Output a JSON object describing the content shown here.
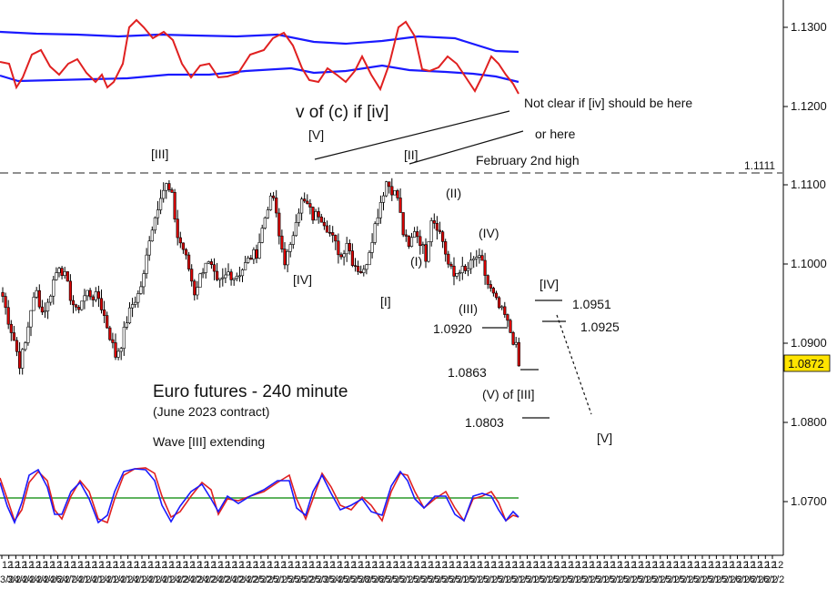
{
  "chart_data": {
    "type": "candlestick",
    "title": "Euro futures - 240 minute",
    "subtitle": "(June 2023 contract)",
    "note": "Wave [III] extending",
    "price_axis": {
      "ylim": [
        1.063,
        1.134
      ],
      "ticks": [
        "1.1300",
        "1.1200",
        "1.1100",
        "1.1000",
        "1.0900",
        "1.0800",
        "1.0700"
      ],
      "last_price": "1.0872",
      "reference_level_label": "1.1111"
    },
    "reference_level": {
      "value": 1.1111,
      "label": "February 2nd high",
      "style": "dashed"
    },
    "time_axis_labels": [
      "3/2",
      "3/2",
      "4/2",
      "4/2",
      "4/2",
      "4/2",
      "4/2",
      "4/2",
      "6/2",
      "4/2",
      "7/2",
      "4/2",
      "1/2",
      "4/2",
      "1/2",
      "4/2",
      "1/2",
      "4/2",
      "1/2",
      "4/2",
      "1/2",
      "4/2",
      "1/2",
      "4/2",
      "1/2",
      "4/2",
      "2/2",
      "4/2",
      "2/2",
      "4/2",
      "2/2",
      "4/2",
      "2/2",
      "4/2",
      "2/2",
      "4/2",
      "2/2",
      "5/2",
      "2/2",
      "5/2",
      "1/2",
      "5/2",
      "5/2",
      "5/2",
      "2/2",
      "5/2",
      "3/2",
      "5/2",
      "4/2",
      "5/2",
      "5/2",
      "5/2",
      "8/2",
      "5/2",
      "6/2",
      "5/2",
      "5/2",
      "5/2",
      "1/2",
      "5/2",
      "5/2",
      "5/2",
      "5/2",
      "5/2",
      "5/2",
      "5/2",
      "1/2",
      "5/2",
      "1/2",
      "5/2",
      "1/2",
      "5/2",
      "1/2",
      "5/2",
      "1/2",
      "5/2",
      "1/2",
      "5/2",
      "1/2",
      "5/2",
      "1/2",
      "5/2",
      "1/2",
      "5/2",
      "1/2",
      "5/2",
      "1/2",
      "5/2",
      "1/2",
      "5/2",
      "1/2",
      "5/2",
      "1/2",
      "5/2",
      "1/2",
      "5/2",
      "1/2",
      "5/2",
      "1/2",
      "5/2",
      "1/2",
      "5/2",
      "1/2",
      "5/2",
      "1/2",
      "6/2",
      "1/2",
      "6/2",
      "1/2",
      "6/2",
      "1/2"
    ],
    "price_path": [
      [
        0,
        1.096
      ],
      [
        2,
        1.093
      ],
      [
        4,
        1.0905
      ],
      [
        6,
        1.0875
      ],
      [
        8,
        1.09
      ],
      [
        10,
        1.0945
      ],
      [
        12,
        1.0965
      ],
      [
        14,
        1.094
      ],
      [
        16,
        1.095
      ],
      [
        18,
        1.098
      ],
      [
        20,
        1.1
      ],
      [
        22,
        1.0985
      ],
      [
        24,
        1.096
      ],
      [
        26,
        1.094
      ],
      [
        28,
        1.0955
      ],
      [
        30,
        1.0965
      ],
      [
        32,
        1.096
      ],
      [
        34,
        1.0958
      ],
      [
        36,
        1.0935
      ],
      [
        38,
        1.091
      ],
      [
        40,
        1.0885
      ],
      [
        42,
        1.09
      ],
      [
        44,
        1.093
      ],
      [
        46,
        1.095
      ],
      [
        48,
        1.0962
      ],
      [
        50,
        1.0985
      ],
      [
        52,
        1.1035
      ],
      [
        54,
        1.106
      ],
      [
        56,
        1.109
      ],
      [
        58,
        1.11
      ],
      [
        60,
        1.1085
      ],
      [
        62,
        1.1035
      ],
      [
        64,
        1.102
      ],
      [
        66,
        1.0995
      ],
      [
        68,
        1.0965
      ],
      [
        70,
        1.0985
      ],
      [
        72,
        1.1005
      ],
      [
        74,
        1.0995
      ],
      [
        76,
        1.0975
      ],
      [
        78,
        1.098
      ],
      [
        80,
        1.099
      ],
      [
        82,
        1.0985
      ],
      [
        84,
        1.099
      ],
      [
        86,
        1.1
      ],
      [
        88,
        1.101
      ],
      [
        90,
        1.1015
      ],
      [
        92,
        1.1045
      ],
      [
        94,
        1.1075
      ],
      [
        96,
        1.1085
      ],
      [
        98,
        1.1035
      ],
      [
        100,
        1.1005
      ],
      [
        102,
        1.102
      ],
      [
        104,
        1.106
      ],
      [
        106,
        1.108
      ],
      [
        108,
        1.1075
      ],
      [
        110,
        1.106
      ],
      [
        112,
        1.1065
      ],
      [
        114,
        1.1055
      ],
      [
        116,
        1.104
      ],
      [
        118,
        1.1025
      ],
      [
        120,
        1.101
      ],
      [
        122,
        1.103
      ],
      [
        124,
        1.1005
      ],
      [
        126,
        1.0995
      ],
      [
        128,
        1.099
      ],
      [
        130,
        1.102
      ],
      [
        132,
        1.105
      ],
      [
        134,
        1.108
      ],
      [
        136,
        1.1105
      ],
      [
        138,
        1.1095
      ],
      [
        140,
        1.1085
      ],
      [
        142,
        1.104
      ],
      [
        144,
        1.102
      ],
      [
        146,
        1.1045
      ],
      [
        148,
        1.103
      ],
      [
        150,
        1.101
      ],
      [
        152,
        1.106
      ],
      [
        154,
        1.105
      ],
      [
        156,
        1.103
      ],
      [
        158,
        1.1
      ],
      [
        160,
        1.0985
      ],
      [
        162,
        1.0995
      ],
      [
        164,
        1.099
      ],
      [
        166,
        1.1
      ],
      [
        168,
        1.101
      ],
      [
        170,
        1.1
      ],
      [
        172,
        1.0975
      ],
      [
        174,
        1.096
      ],
      [
        176,
        1.0945
      ],
      [
        178,
        1.0935
      ],
      [
        180,
        1.0915
      ],
      [
        182,
        1.0895
      ],
      [
        183,
        1.0872
      ]
    ],
    "series": [
      {
        "name": "",
        "panel": "price",
        "type": "candlestick",
        "color_down": "#dd0000",
        "color_up": "#ffffff"
      },
      {
        "name": "",
        "panel": "upper-oscillator",
        "color": "#e02020"
      },
      {
        "name": "",
        "panel": "upper-band",
        "color": "#1a1aff"
      },
      {
        "name": "",
        "panel": "lower-stochastic",
        "color": "#e02020"
      },
      {
        "name": "",
        "panel": "lower-stochastic",
        "color": "#1a1aff"
      },
      {
        "name": "",
        "panel": "lower-stochastic-midline",
        "color": "#2a9a2a"
      }
    ],
    "annotations": {
      "wave_labels": [
        {
          "text": "[III]",
          "price": 1.1135,
          "bar": 60
        },
        {
          "text": "[IV]",
          "price": 1.0975,
          "bar": 108
        },
        {
          "text": "[V]",
          "price": 1.1165,
          "bar": 112
        },
        {
          "text": "[II]",
          "price": 1.114,
          "bar": 148
        },
        {
          "text": "[I]",
          "price": 1.093,
          "bar": 138
        },
        {
          "text": "(I)",
          "price": 1.1005,
          "bar": 150
        },
        {
          "text": "(II)",
          "price": 1.1095,
          "bar": 163
        },
        {
          "text": "(IV)",
          "price": 1.104,
          "bar": 176
        },
        {
          "text": "(III)",
          "price": 1.0945,
          "bar": 170
        },
        {
          "text": "(V) of [III]",
          "price": 1.084,
          "bar": 185
        },
        {
          "text": "[IV]",
          "price": 1.097,
          "bar": 198
        },
        {
          "text": "[V]",
          "price": 1.0775,
          "bar": 218
        },
        {
          "text": "v of (c) if [iv]",
          "price": 1.1205,
          "bar": 120
        }
      ],
      "notes": [
        {
          "text": "Not clear if [iv] should be here",
          "price": 1.1218
        },
        {
          "text": "or here",
          "price": 1.118
        },
        {
          "text": "February 2nd high",
          "price": 1.114
        }
      ],
      "levels": [
        {
          "text": "1.0951",
          "value": 1.0951
        },
        {
          "text": "1.0925",
          "value": 1.0925
        },
        {
          "text": "1.0920",
          "value": 1.092
        },
        {
          "text": "1.0863",
          "value": 1.0863
        },
        {
          "text": "1.0803",
          "value": 1.0803
        }
      ]
    },
    "colors": {
      "bullish": "#ffffff",
      "bearish": "#dd0000",
      "wick": "#000000",
      "last_price_badge": "#ffe400"
    }
  }
}
